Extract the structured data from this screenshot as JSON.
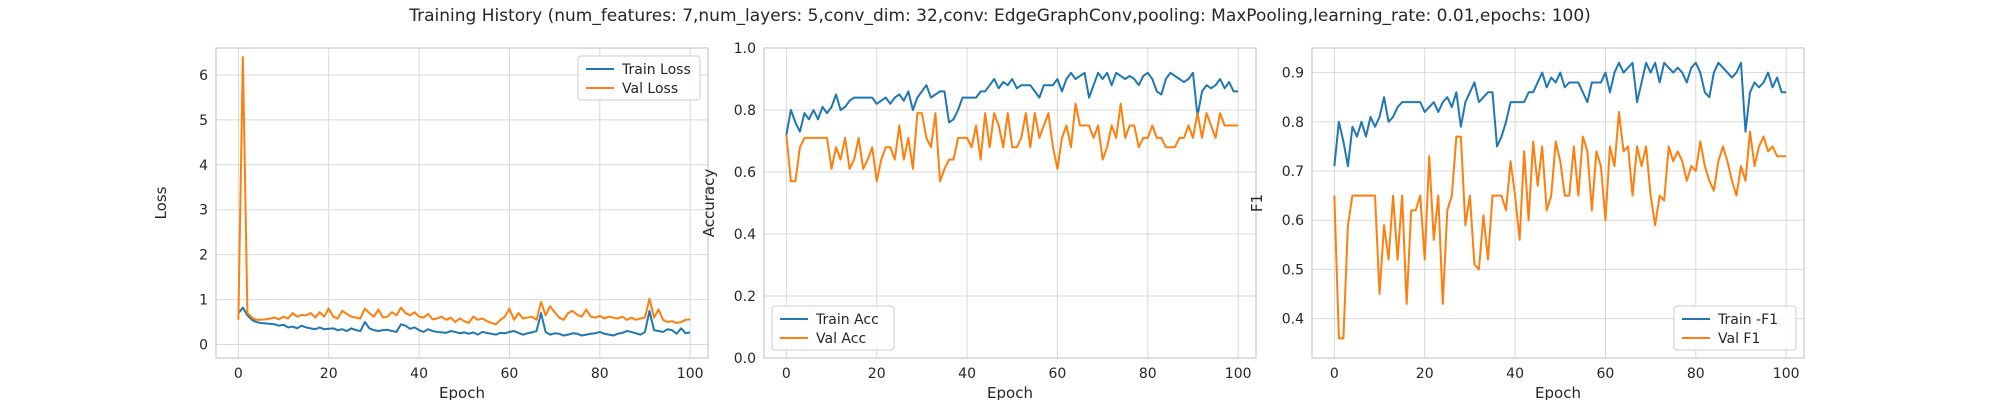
{
  "title": "Training History (num_features: 7,num_layers: 5,conv_dim: 32,conv: EdgeGraphConv,pooling: MaxPooling,learning_rate: 0.01,epochs: 100)",
  "colors": {
    "train": "#1f77b4",
    "val": "#ff7f0e",
    "grid": "#d9d9d9",
    "frame": "#c8c8c8"
  },
  "chart_data": [
    {
      "type": "line",
      "xlabel": "Epoch",
      "ylabel": "Loss",
      "xlim": [
        -4.95,
        103.95
      ],
      "ylim": [
        -0.3,
        6.6
      ],
      "xticks": [
        0,
        20,
        40,
        60,
        80,
        100
      ],
      "yticks": [
        0,
        1,
        2,
        3,
        4,
        5,
        6
      ],
      "grid": true,
      "legend": "top-right",
      "series": [
        {
          "name": "Train Loss",
          "color": "#1f77b4",
          "values": [
            0.7,
            0.82,
            0.65,
            0.55,
            0.5,
            0.48,
            0.47,
            0.46,
            0.45,
            0.42,
            0.44,
            0.38,
            0.4,
            0.36,
            0.42,
            0.38,
            0.36,
            0.34,
            0.38,
            0.34,
            0.35,
            0.36,
            0.32,
            0.34,
            0.3,
            0.36,
            0.32,
            0.3,
            0.5,
            0.36,
            0.32,
            0.3,
            0.32,
            0.33,
            0.3,
            0.28,
            0.45,
            0.42,
            0.35,
            0.38,
            0.32,
            0.28,
            0.34,
            0.3,
            0.28,
            0.27,
            0.26,
            0.3,
            0.28,
            0.25,
            0.27,
            0.24,
            0.27,
            0.22,
            0.28,
            0.26,
            0.24,
            0.22,
            0.26,
            0.25,
            0.28,
            0.3,
            0.26,
            0.22,
            0.25,
            0.27,
            0.3,
            0.7,
            0.28,
            0.22,
            0.25,
            0.24,
            0.2,
            0.22,
            0.25,
            0.24,
            0.2,
            0.22,
            0.24,
            0.25,
            0.28,
            0.24,
            0.22,
            0.2,
            0.24,
            0.26,
            0.3,
            0.28,
            0.25,
            0.22,
            0.28,
            0.75,
            0.32,
            0.3,
            0.28,
            0.34,
            0.32,
            0.24,
            0.36,
            0.25,
            0.27
          ]
        },
        {
          "name": "Val Loss",
          "color": "#ff7f0e",
          "values": [
            0.55,
            6.4,
            0.7,
            0.6,
            0.55,
            0.55,
            0.56,
            0.58,
            0.6,
            0.56,
            0.62,
            0.58,
            0.7,
            0.62,
            0.66,
            0.65,
            0.7,
            0.6,
            0.72,
            0.62,
            0.8,
            0.62,
            0.58,
            0.75,
            0.68,
            0.62,
            0.6,
            0.58,
            0.8,
            0.7,
            0.62,
            0.78,
            0.6,
            0.62,
            0.72,
            0.65,
            0.82,
            0.7,
            0.65,
            0.72,
            0.62,
            0.6,
            0.68,
            0.56,
            0.58,
            0.62,
            0.55,
            0.6,
            0.5,
            0.58,
            0.52,
            0.48,
            0.62,
            0.55,
            0.58,
            0.52,
            0.48,
            0.45,
            0.55,
            0.62,
            0.8,
            0.55,
            0.7,
            0.58,
            0.6,
            0.62,
            0.55,
            0.95,
            0.65,
            0.85,
            0.72,
            0.6,
            0.55,
            0.7,
            0.75,
            0.66,
            0.62,
            0.78,
            0.62,
            0.6,
            0.64,
            0.58,
            0.62,
            0.6,
            0.58,
            0.62,
            0.55,
            0.6,
            0.55,
            0.58,
            0.6,
            1.02,
            0.6,
            0.78,
            0.55,
            0.5,
            0.52,
            0.48,
            0.5,
            0.55,
            0.56
          ]
        }
      ]
    },
    {
      "type": "line",
      "xlabel": "Epoch",
      "ylabel": "Accuracy",
      "xlim": [
        -4.95,
        103.95
      ],
      "ylim": [
        0.0,
        1.0
      ],
      "xticks": [
        0,
        20,
        40,
        60,
        80,
        100
      ],
      "yticks": [
        0.0,
        0.2,
        0.4,
        0.6,
        0.8,
        1.0
      ],
      "grid": true,
      "legend": "bottom-left",
      "series": [
        {
          "name": "Train Acc",
          "color": "#1f77b4",
          "values": [
            0.72,
            0.8,
            0.76,
            0.73,
            0.79,
            0.77,
            0.8,
            0.77,
            0.81,
            0.79,
            0.81,
            0.85,
            0.8,
            0.81,
            0.83,
            0.84,
            0.84,
            0.84,
            0.84,
            0.84,
            0.82,
            0.83,
            0.84,
            0.82,
            0.84,
            0.85,
            0.83,
            0.86,
            0.8,
            0.84,
            0.86,
            0.88,
            0.84,
            0.85,
            0.86,
            0.86,
            0.76,
            0.77,
            0.8,
            0.84,
            0.84,
            0.84,
            0.84,
            0.86,
            0.86,
            0.88,
            0.9,
            0.87,
            0.89,
            0.88,
            0.9,
            0.87,
            0.88,
            0.88,
            0.88,
            0.86,
            0.84,
            0.88,
            0.88,
            0.88,
            0.9,
            0.86,
            0.9,
            0.92,
            0.9,
            0.91,
            0.92,
            0.84,
            0.88,
            0.92,
            0.9,
            0.92,
            0.88,
            0.92,
            0.91,
            0.9,
            0.91,
            0.9,
            0.88,
            0.91,
            0.92,
            0.9,
            0.86,
            0.85,
            0.9,
            0.92,
            0.91,
            0.9,
            0.89,
            0.9,
            0.92,
            0.78,
            0.86,
            0.88,
            0.87,
            0.88,
            0.9,
            0.87,
            0.89,
            0.86,
            0.86
          ]
        },
        {
          "name": "Val Acc",
          "color": "#ff7f0e",
          "values": [
            0.72,
            0.57,
            0.57,
            0.68,
            0.71,
            0.71,
            0.71,
            0.71,
            0.71,
            0.71,
            0.61,
            0.68,
            0.64,
            0.71,
            0.61,
            0.64,
            0.71,
            0.61,
            0.64,
            0.68,
            0.57,
            0.64,
            0.68,
            0.68,
            0.64,
            0.75,
            0.64,
            0.71,
            0.61,
            0.79,
            0.79,
            0.71,
            0.68,
            0.79,
            0.57,
            0.61,
            0.64,
            0.64,
            0.71,
            0.71,
            0.71,
            0.68,
            0.75,
            0.64,
            0.79,
            0.68,
            0.79,
            0.75,
            0.68,
            0.79,
            0.68,
            0.68,
            0.71,
            0.79,
            0.68,
            0.79,
            0.71,
            0.75,
            0.79,
            0.68,
            0.61,
            0.71,
            0.75,
            0.68,
            0.82,
            0.75,
            0.75,
            0.75,
            0.71,
            0.75,
            0.64,
            0.68,
            0.75,
            0.71,
            0.82,
            0.71,
            0.75,
            0.75,
            0.68,
            0.71,
            0.71,
            0.75,
            0.71,
            0.71,
            0.68,
            0.68,
            0.68,
            0.71,
            0.71,
            0.75,
            0.71,
            0.79,
            0.71,
            0.79,
            0.75,
            0.71,
            0.79,
            0.75,
            0.75,
            0.75,
            0.75
          ]
        }
      ]
    },
    {
      "type": "line",
      "xlabel": "Epoch",
      "ylabel": "F1",
      "xlim": [
        -4.95,
        103.95
      ],
      "ylim": [
        0.32,
        0.95
      ],
      "xticks": [
        0,
        20,
        40,
        60,
        80,
        100
      ],
      "yticks": [
        0.4,
        0.5,
        0.6,
        0.7,
        0.8,
        0.9
      ],
      "grid": true,
      "legend": "bottom-right",
      "series": [
        {
          "name": "Train -F1",
          "color": "#1f77b4",
          "values": [
            0.71,
            0.8,
            0.76,
            0.71,
            0.79,
            0.77,
            0.8,
            0.77,
            0.81,
            0.79,
            0.81,
            0.85,
            0.8,
            0.81,
            0.83,
            0.84,
            0.84,
            0.84,
            0.84,
            0.84,
            0.82,
            0.83,
            0.84,
            0.82,
            0.84,
            0.85,
            0.83,
            0.86,
            0.79,
            0.84,
            0.86,
            0.88,
            0.84,
            0.85,
            0.86,
            0.86,
            0.75,
            0.77,
            0.8,
            0.84,
            0.84,
            0.84,
            0.84,
            0.86,
            0.86,
            0.88,
            0.9,
            0.87,
            0.89,
            0.88,
            0.9,
            0.87,
            0.88,
            0.88,
            0.88,
            0.86,
            0.84,
            0.88,
            0.88,
            0.88,
            0.9,
            0.86,
            0.9,
            0.92,
            0.9,
            0.91,
            0.92,
            0.84,
            0.88,
            0.92,
            0.9,
            0.92,
            0.88,
            0.92,
            0.91,
            0.9,
            0.91,
            0.9,
            0.88,
            0.91,
            0.92,
            0.9,
            0.86,
            0.85,
            0.9,
            0.92,
            0.91,
            0.9,
            0.89,
            0.9,
            0.92,
            0.78,
            0.86,
            0.88,
            0.87,
            0.88,
            0.9,
            0.87,
            0.89,
            0.86,
            0.86
          ]
        },
        {
          "name": "Val F1",
          "color": "#ff7f0e",
          "values": [
            0.65,
            0.36,
            0.36,
            0.59,
            0.65,
            0.65,
            0.65,
            0.65,
            0.65,
            0.65,
            0.45,
            0.59,
            0.52,
            0.65,
            0.52,
            0.65,
            0.43,
            0.62,
            0.62,
            0.65,
            0.52,
            0.73,
            0.56,
            0.65,
            0.43,
            0.62,
            0.65,
            0.77,
            0.77,
            0.59,
            0.65,
            0.51,
            0.5,
            0.61,
            0.52,
            0.65,
            0.65,
            0.65,
            0.62,
            0.72,
            0.65,
            0.56,
            0.74,
            0.6,
            0.76,
            0.67,
            0.75,
            0.62,
            0.65,
            0.76,
            0.72,
            0.65,
            0.65,
            0.75,
            0.65,
            0.77,
            0.74,
            0.62,
            0.74,
            0.71,
            0.6,
            0.75,
            0.71,
            0.82,
            0.74,
            0.75,
            0.65,
            0.75,
            0.71,
            0.75,
            0.65,
            0.59,
            0.65,
            0.64,
            0.75,
            0.72,
            0.74,
            0.72,
            0.68,
            0.71,
            0.7,
            0.76,
            0.71,
            0.68,
            0.66,
            0.72,
            0.75,
            0.72,
            0.68,
            0.65,
            0.71,
            0.68,
            0.78,
            0.71,
            0.75,
            0.77,
            0.74,
            0.75,
            0.73,
            0.73,
            0.73
          ]
        }
      ]
    }
  ]
}
